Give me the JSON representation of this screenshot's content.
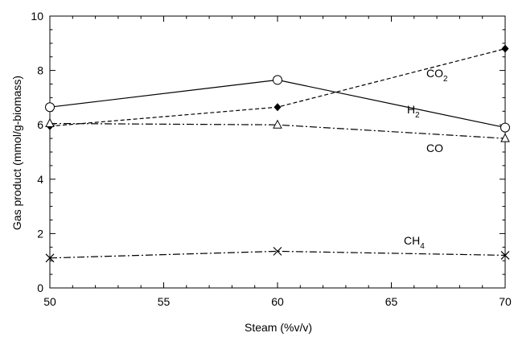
{
  "chart_data": {
    "type": "line",
    "xlabel": "Steam (%v/v)",
    "ylabel": "Gas product (mmol/g-biomass)",
    "xlim": [
      50,
      70
    ],
    "ylim": [
      0,
      10
    ],
    "xticks": [
      "50",
      "55",
      "60",
      "65",
      "70"
    ],
    "yticks": [
      "0",
      "2",
      "4",
      "6",
      "8",
      "10"
    ],
    "grid": false,
    "legend": "inline-labels",
    "x": [
      50,
      60,
      70
    ],
    "series": [
      {
        "name": "H2",
        "label_main": "H",
        "label_sub": "2",
        "values": [
          6.65,
          7.65,
          5.9
        ],
        "marker": "circle-open",
        "line": "solid"
      },
      {
        "name": "CO2",
        "label_main": "CO",
        "label_sub": "2",
        "values": [
          5.95,
          6.65,
          8.8
        ],
        "marker": "diamond-filled",
        "line": "dashed"
      },
      {
        "name": "CO",
        "label_main": "CO",
        "label_sub": "",
        "values": [
          6.05,
          6.0,
          5.5
        ],
        "marker": "triangle-open",
        "line": "dashdot"
      },
      {
        "name": "CH4",
        "label_main": "CH",
        "label_sub": "4",
        "values": [
          1.1,
          1.35,
          1.2
        ],
        "marker": "cross",
        "line": "dashdot"
      }
    ]
  }
}
